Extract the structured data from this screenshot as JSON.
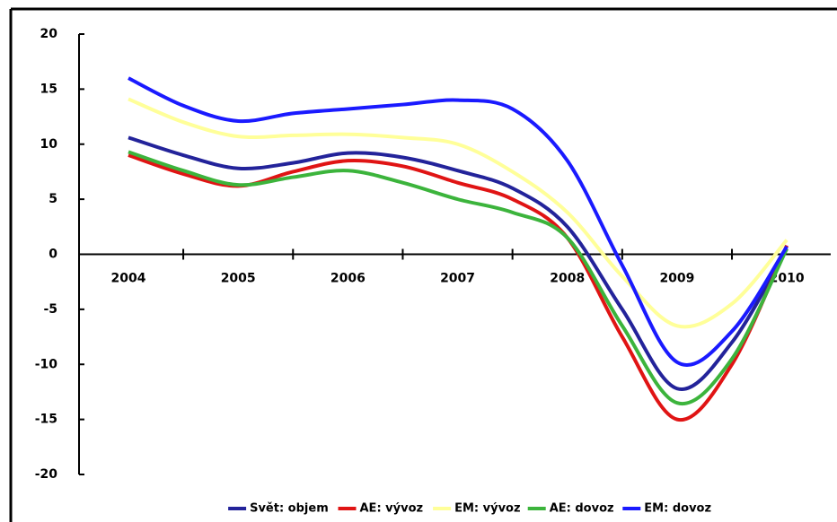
{
  "chart_data": {
    "type": "line",
    "x": [
      2004,
      2004.5,
      2005,
      2005.5,
      2006,
      2006.5,
      2007,
      2007.5,
      2008,
      2008.5,
      2009,
      2009.5,
      2010
    ],
    "series": [
      {
        "name": "Svět: objem",
        "color": "#23239a",
        "values": [
          10.6,
          9,
          7.8,
          8.3,
          9.2,
          8.8,
          7.6,
          6,
          2.5,
          -5,
          -12.2,
          -8,
          0.5
        ]
      },
      {
        "name": "AE: vývoz",
        "color": "#e01414",
        "values": [
          9,
          7.3,
          6.2,
          7.5,
          8.5,
          8,
          6.5,
          5,
          1.5,
          -7.5,
          -15,
          -10,
          0.8
        ]
      },
      {
        "name": "EM: vývoz",
        "color": "#ffff99",
        "values": [
          14.1,
          12,
          10.7,
          10.8,
          10.9,
          10.6,
          10,
          7.5,
          3.8,
          -2,
          -6.5,
          -4.5,
          1.3
        ]
      },
      {
        "name": "AE: dovoz",
        "color": "#3cb43c",
        "values": [
          9.3,
          7.6,
          6.3,
          7,
          7.6,
          6.5,
          5,
          3.8,
          1.5,
          -6.5,
          -13.5,
          -9.5,
          0.5
        ]
      },
      {
        "name": "EM: dovoz",
        "color": "#1a1aff",
        "values": [
          16,
          13.5,
          12.1,
          12.8,
          13.2,
          13.6,
          14,
          13.2,
          8.5,
          -1,
          -9.8,
          -7,
          0.7
        ]
      }
    ],
    "xlim": [
      2003.55,
      2010.4
    ],
    "xticks": [
      2004,
      2005,
      2006,
      2007,
      2008,
      2009,
      2010
    ],
    "ylim": [
      -20,
      20
    ],
    "yticks": [
      -20,
      -15,
      -10,
      -5,
      0,
      5,
      10,
      15,
      20
    ],
    "legend": "bottom"
  }
}
